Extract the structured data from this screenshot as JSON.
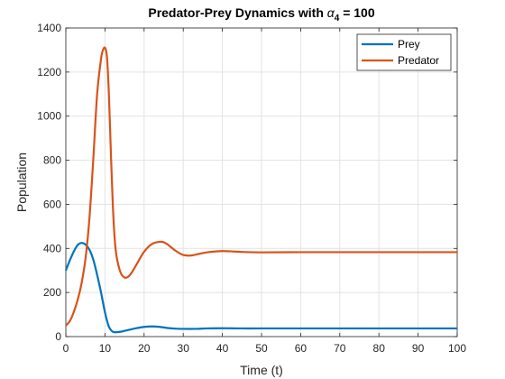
{
  "chart_data": {
    "type": "line",
    "title": {
      "prefix": "Predator-Prey Dynamics with ",
      "symbol": "α",
      "subscript": "4",
      "suffix": " = 100"
    },
    "xlabel": "Time (t)",
    "ylabel": "Population",
    "xlim": [
      0,
      100
    ],
    "ylim": [
      0,
      1400
    ],
    "xticks": [
      0,
      10,
      20,
      30,
      40,
      50,
      60,
      70,
      80,
      90,
      100
    ],
    "yticks": [
      0,
      200,
      400,
      600,
      800,
      1000,
      1200,
      1400
    ],
    "grid": true,
    "legend_position": "top-right",
    "series": [
      {
        "name": "Prey",
        "color": "#0072BD",
        "x": [
          0,
          1,
          2,
          3,
          4,
          5,
          6,
          7,
          8,
          9,
          10,
          11,
          12,
          13,
          14,
          15,
          16,
          18,
          20,
          22,
          24,
          26,
          28,
          30,
          33,
          36,
          40,
          45,
          50,
          60,
          70,
          80,
          90,
          100
        ],
        "y": [
          300,
          345,
          385,
          415,
          425,
          418,
          395,
          350,
          280,
          200,
          110,
          45,
          22,
          20,
          22,
          26,
          30,
          38,
          44,
          46,
          44,
          39,
          36,
          35,
          35,
          37,
          38,
          37,
          37,
          37,
          37,
          37,
          37,
          37
        ]
      },
      {
        "name": "Predator",
        "color": "#D95319",
        "x": [
          0,
          1,
          2,
          3,
          4,
          5,
          6,
          7,
          8,
          9,
          9.5,
          10,
          10.5,
          11,
          11.5,
          12,
          12.5,
          13,
          14,
          15,
          16,
          17,
          18,
          20,
          22,
          24,
          25,
          26,
          28,
          30,
          32,
          34,
          36,
          40,
          45,
          50,
          60,
          70,
          80,
          90,
          100
        ],
        "y": [
          50,
          70,
          110,
          165,
          240,
          350,
          530,
          800,
          1100,
          1260,
          1300,
          1310,
          1270,
          1100,
          840,
          600,
          440,
          360,
          290,
          268,
          272,
          295,
          325,
          385,
          420,
          430,
          428,
          418,
          390,
          370,
          368,
          375,
          382,
          388,
          384,
          382,
          383,
          383,
          383,
          383,
          383
        ]
      }
    ]
  }
}
